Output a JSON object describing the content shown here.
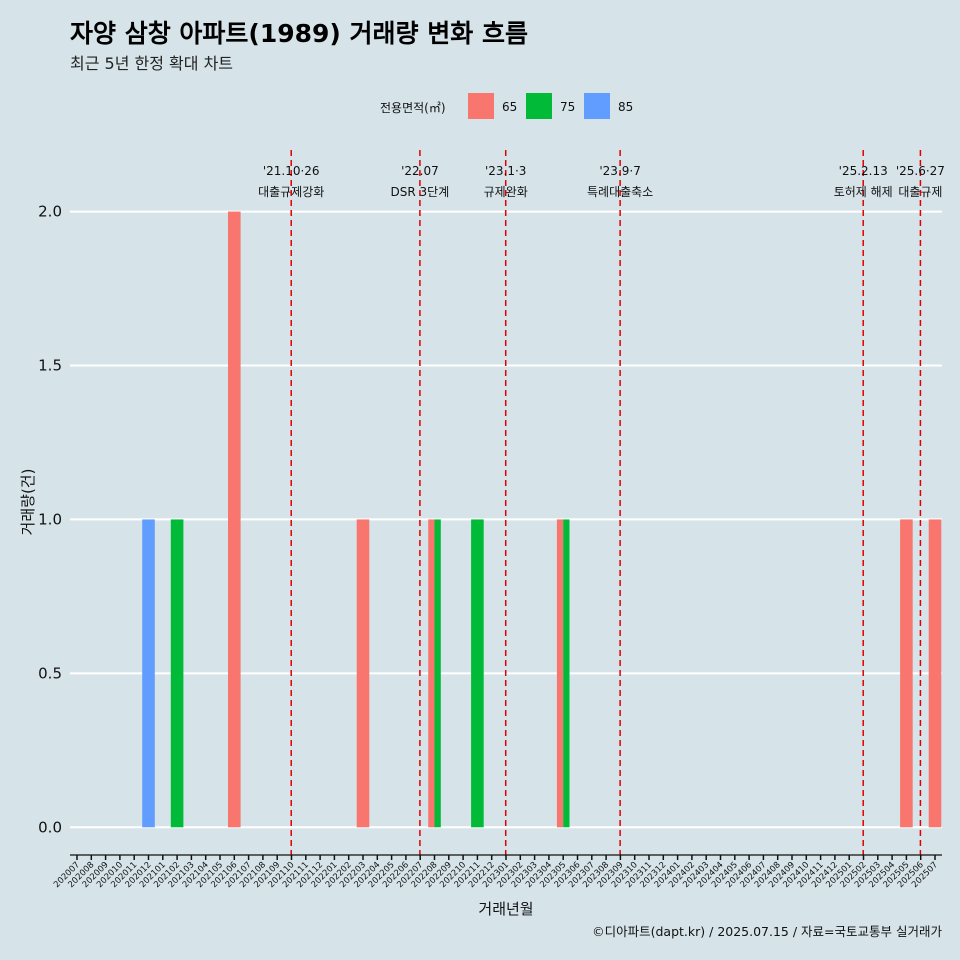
{
  "chart_data": {
    "type": "bar",
    "title": "자양 삼창 아파트(1989) 거래량 변화 흐름",
    "subtitle": "최근 5년 한정 확대 차트",
    "xlabel": "거래년월",
    "ylabel": "거래량(건)",
    "caption": "©디아파트(dapt.kr) / 2025.07.15 / 자료=국토교통부 실거래가",
    "ylim": [
      -0.09,
      2.2
    ],
    "yticks": [
      "0.0",
      "0.5",
      "1.0",
      "1.5",
      "2.0"
    ],
    "ytick_values": [
      0,
      0.5,
      1,
      1.5,
      2
    ],
    "legend": {
      "title": "전용면적(㎡)",
      "position": "top"
    },
    "series": [
      {
        "name": "65",
        "color": "#f8766d"
      },
      {
        "name": "75",
        "color": "#00ba38"
      },
      {
        "name": "85",
        "color": "#619cff"
      }
    ],
    "categories": [
      "202007",
      "202008",
      "202009",
      "202010",
      "202011",
      "202012",
      "202101",
      "202102",
      "202103",
      "202104",
      "202105",
      "202106",
      "202107",
      "202108",
      "202109",
      "202110",
      "202111",
      "202112",
      "202201",
      "202202",
      "202203",
      "202204",
      "202205",
      "202206",
      "202207",
      "202208",
      "202209",
      "202210",
      "202211",
      "202212",
      "202301",
      "202302",
      "202303",
      "202304",
      "202305",
      "202306",
      "202307",
      "202308",
      "202309",
      "202310",
      "202311",
      "202312",
      "202401",
      "202402",
      "202403",
      "202404",
      "202405",
      "202406",
      "202407",
      "202408",
      "202409",
      "202410",
      "202411",
      "202412",
      "202501",
      "202502",
      "202503",
      "202504",
      "202505",
      "202506",
      "202507"
    ],
    "bars": [
      {
        "month": "202012",
        "series": "85",
        "value": 1
      },
      {
        "month": "202102",
        "series": "75",
        "value": 1
      },
      {
        "month": "202106",
        "series": "65",
        "value": 2
      },
      {
        "month": "202203",
        "series": "65",
        "value": 1
      },
      {
        "month": "202208",
        "series": "65",
        "value": 1
      },
      {
        "month": "202208",
        "series": "75",
        "value": 1
      },
      {
        "month": "202211",
        "series": "75",
        "value": 1
      },
      {
        "month": "202305",
        "series": "65",
        "value": 1
      },
      {
        "month": "202305",
        "series": "75",
        "value": 1
      },
      {
        "month": "202505",
        "series": "65",
        "value": 1
      },
      {
        "month": "202507",
        "series": "65",
        "value": 1
      }
    ],
    "events": [
      {
        "month": "202110",
        "date": "'21.10·26",
        "label": "대출규제강화"
      },
      {
        "month": "202207",
        "date": "'22.07",
        "label": "DSR 3단계"
      },
      {
        "month": "202301",
        "date": "'23.1·3",
        "label": "규제완화"
      },
      {
        "month": "202309",
        "date": "'23.9·7",
        "label": "특례대출축소"
      },
      {
        "month": "202502",
        "date": "'25.2.13",
        "label": "토허제 해제"
      },
      {
        "month": "202506",
        "date": "'25.6·27",
        "label": "대출규제"
      }
    ],
    "grid": true
  }
}
